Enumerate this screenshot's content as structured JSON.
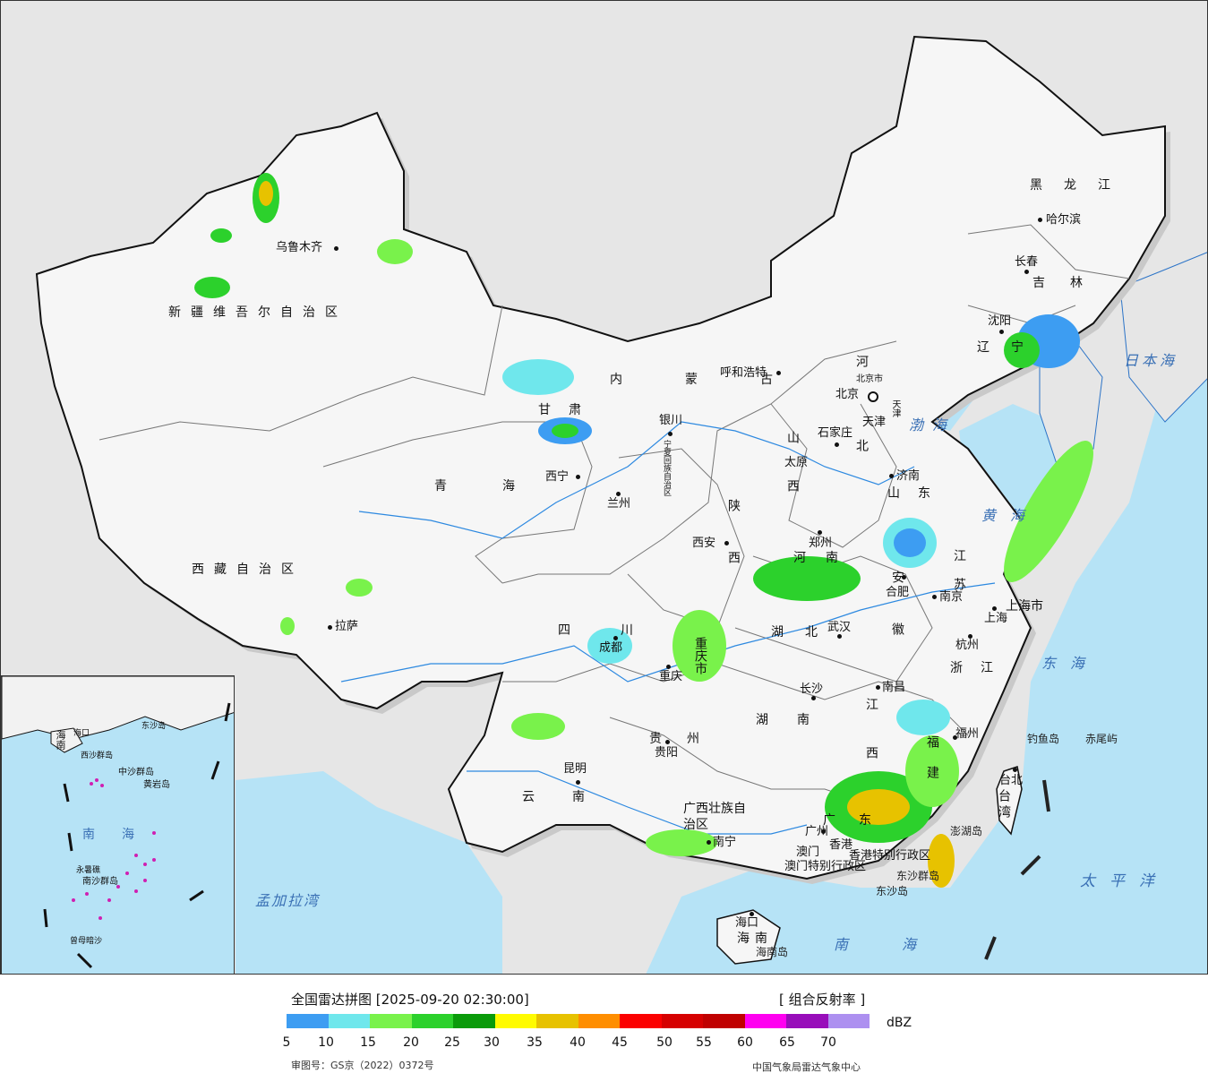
{
  "map": {
    "provinces": [
      {
        "id": "xinjiang",
        "name": "新疆维吾尔自治区"
      },
      {
        "id": "xizang",
        "name": "西藏自治区"
      },
      {
        "id": "qinghai",
        "name": "青海"
      },
      {
        "id": "gansu",
        "name": "甘肃"
      },
      {
        "id": "neimenggu",
        "name": "内蒙古"
      },
      {
        "id": "ningxia",
        "name": "宁夏回族自治区"
      },
      {
        "id": "shaanxi",
        "name": "陕西"
      },
      {
        "id": "shanxi",
        "name": "山西"
      },
      {
        "id": "hebei",
        "name": "河北"
      },
      {
        "id": "heilongjiang",
        "name": "黑龙江"
      },
      {
        "id": "jilin",
        "name": "吉林"
      },
      {
        "id": "liaoning",
        "name": "辽宁"
      },
      {
        "id": "shandong",
        "name": "山东"
      },
      {
        "id": "henan",
        "name": "河南"
      },
      {
        "id": "sichuan",
        "name": "四川"
      },
      {
        "id": "chongqing",
        "name": "重庆市"
      },
      {
        "id": "hubei",
        "name": "湖北"
      },
      {
        "id": "anhui",
        "name": "安徽"
      },
      {
        "id": "jiangsu",
        "name": "江苏"
      },
      {
        "id": "shanghai",
        "name": "上海市"
      },
      {
        "id": "zhejiang",
        "name": "浙江"
      },
      {
        "id": "jiangxi",
        "name": "江西"
      },
      {
        "id": "hunan",
        "name": "湖南"
      },
      {
        "id": "guizhou",
        "name": "贵州"
      },
      {
        "id": "yunnan",
        "name": "云南"
      },
      {
        "id": "guangxi",
        "name": "广西壮族自治区"
      },
      {
        "id": "guangdong",
        "name": "广东"
      },
      {
        "id": "fujian",
        "name": "福建"
      },
      {
        "id": "taiwan",
        "name": "台湾"
      },
      {
        "id": "hainan",
        "name": "海南"
      },
      {
        "id": "hongkong",
        "name": "香港特别行政区"
      },
      {
        "id": "macau",
        "name": "澳门特别行政区"
      },
      {
        "id": "beijing",
        "name": "北京市"
      },
      {
        "id": "tianjin",
        "name": "天津"
      }
    ],
    "cities": [
      {
        "id": "urumqi",
        "name": "乌鲁木齐"
      },
      {
        "id": "lhasa",
        "name": "拉萨"
      },
      {
        "id": "xining",
        "name": "西宁"
      },
      {
        "id": "lanzhou",
        "name": "兰州"
      },
      {
        "id": "yinchuan",
        "name": "银川"
      },
      {
        "id": "hohhot",
        "name": "呼和浩特"
      },
      {
        "id": "beijing",
        "name": "北京"
      },
      {
        "id": "tianjin",
        "name": "天津"
      },
      {
        "id": "shijiazhuang",
        "name": "石家庄"
      },
      {
        "id": "taiyuan",
        "name": "太原"
      },
      {
        "id": "xian",
        "name": "西安"
      },
      {
        "id": "zhengzhou",
        "name": "郑州"
      },
      {
        "id": "jinan",
        "name": "济南"
      },
      {
        "id": "harbin",
        "name": "哈尔滨"
      },
      {
        "id": "changchun",
        "name": "长春"
      },
      {
        "id": "shenyang",
        "name": "沈阳"
      },
      {
        "id": "chengdu",
        "name": "成都"
      },
      {
        "id": "chongqing",
        "name": "重庆"
      },
      {
        "id": "wuhan",
        "name": "武汉"
      },
      {
        "id": "hefei",
        "name": "合肥"
      },
      {
        "id": "nanjing",
        "name": "南京"
      },
      {
        "id": "shanghai",
        "name": "上海"
      },
      {
        "id": "hangzhou",
        "name": "杭州"
      },
      {
        "id": "nanchang",
        "name": "南昌"
      },
      {
        "id": "changsha",
        "name": "长沙"
      },
      {
        "id": "guiyang",
        "name": "贵阳"
      },
      {
        "id": "kunming",
        "name": "昆明"
      },
      {
        "id": "nanning",
        "name": "南宁"
      },
      {
        "id": "guangzhou",
        "name": "广州"
      },
      {
        "id": "fuzhou",
        "name": "福州"
      },
      {
        "id": "taibei",
        "name": "台北"
      },
      {
        "id": "haikou",
        "name": "海口"
      },
      {
        "id": "hongkong",
        "name": "香港"
      },
      {
        "id": "macau",
        "name": "澳门"
      }
    ],
    "seas": [
      {
        "id": "bohai",
        "name": "渤海"
      },
      {
        "id": "huanghai",
        "name": "黄海"
      },
      {
        "id": "donghai",
        "name": "东海"
      },
      {
        "id": "nanhai",
        "name": "南海"
      },
      {
        "id": "taipingyang",
        "name": "太平洋"
      },
      {
        "id": "ribenhai",
        "name": "日本海"
      },
      {
        "id": "mengjialawan",
        "name": "孟加拉湾"
      }
    ],
    "islands": [
      {
        "id": "diaoyu",
        "name": "钓鱼岛"
      },
      {
        "id": "chiwei",
        "name": "赤尾屿"
      },
      {
        "id": "dongsha",
        "name": "东沙群岛"
      },
      {
        "id": "dongshadao",
        "name": "东沙岛"
      },
      {
        "id": "penghu",
        "name": "澎湖岛"
      },
      {
        "id": "hainandao",
        "name": "海南岛"
      }
    ],
    "inset": {
      "labels": [
        "南海",
        "海南",
        "中沙群岛",
        "黄岩岛",
        "南沙群岛",
        "永暑礁",
        "曾母暗沙",
        "东沙岛",
        "海口",
        "西沙群岛"
      ]
    }
  },
  "legend": {
    "title": "全国雷达拼图 [2025-09-20 02:30:00]",
    "product": "[ 组合反射率 ]",
    "unit": "dBZ",
    "colors": [
      "#3d9df2",
      "#6fe7ec",
      "#79f24b",
      "#2cd12c",
      "#0a9b0a",
      "#fffb00",
      "#e7c200",
      "#ff8e00",
      "#fb0000",
      "#d60000",
      "#c00000",
      "#ff00f0",
      "#980eba",
      "#ad90f0"
    ],
    "ticks": [
      "5",
      "10",
      "15",
      "20",
      "25",
      "30",
      "35",
      "40",
      "45",
      "50",
      "55",
      "60",
      "65",
      "70"
    ]
  },
  "footer": {
    "approval": "审图号：GS京（2022）0372号",
    "agency": "中国气象局雷达气象中心"
  }
}
